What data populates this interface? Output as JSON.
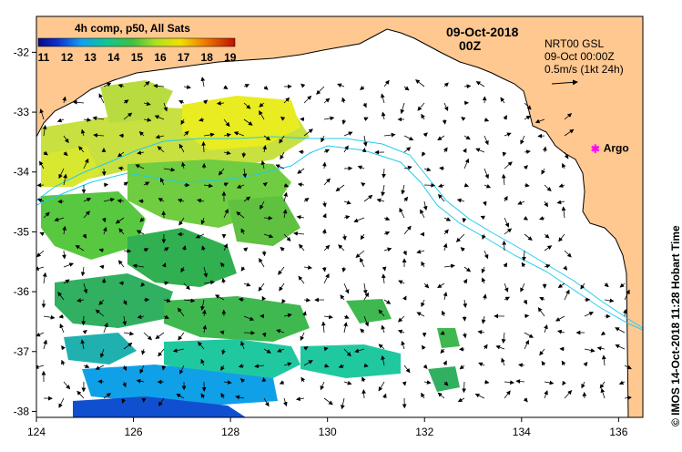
{
  "legend": {
    "title": "4h comp, p50, All Sats",
    "ticks": [
      "11",
      "12",
      "13",
      "14",
      "15",
      "16",
      "17",
      "18",
      "19"
    ]
  },
  "date": {
    "day": "09-Oct-2018",
    "time": "00Z"
  },
  "current_info": {
    "line1": "NRT00 GSL",
    "line2": "09-Oct 00:00Z",
    "line3": "0.5m/s (1kt 24h)"
  },
  "argo": {
    "label": "Argo",
    "color": "#ff00ff",
    "lon": 135.5,
    "lat": -33.6
  },
  "credit": "© IMOS 14-Oct-2018 11:28 Hobart Time",
  "axes": {
    "x_ticks": [
      "124",
      "126",
      "128",
      "130",
      "132",
      "134",
      "136"
    ],
    "y_ticks": [
      "-32",
      "-33",
      "-34",
      "-35",
      "-36",
      "-37",
      "-38"
    ]
  },
  "colors": {
    "land": "#ffc890",
    "contour": "#22ccee",
    "arrows": "#000000"
  },
  "chart_data": {
    "type": "heatmap",
    "variable": "sea surface temperature",
    "color_range": [
      11,
      19.5
    ],
    "lon_range": [
      124,
      136.5
    ],
    "lat_range": [
      -38.1,
      -31.4
    ]
  }
}
